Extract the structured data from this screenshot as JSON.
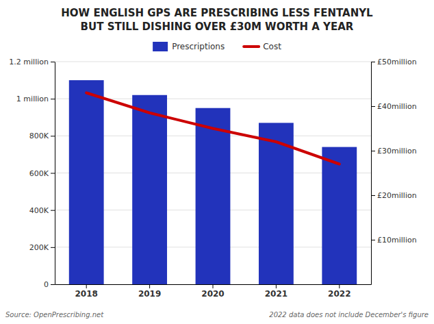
{
  "chart_data": {
    "type": "bar",
    "title": "HOW ENGLISH GPS ARE PRESCRIBING LESS FENTANYL",
    "subtitle": "BUT STILL DISHING OVER £30M WORTH A YEAR",
    "categories": [
      "2018",
      "2019",
      "2020",
      "2021",
      "2022"
    ],
    "series": [
      {
        "name": "Prescriptions",
        "type": "bar",
        "color": "#2233bb",
        "values": [
          1100000,
          1020000,
          950000,
          870000,
          740000
        ]
      },
      {
        "name": "Cost",
        "type": "line",
        "color": "#cc0000",
        "axis": "y2",
        "values": [
          43,
          38.5,
          35,
          32,
          27
        ]
      }
    ],
    "ylim": [
      0,
      1200000
    ],
    "yticks": [
      0,
      {
        "value": 200000,
        "label": "200K"
      },
      {
        "value": 400000,
        "label": "400K"
      },
      {
        "value": 600000,
        "label": "600K"
      },
      {
        "value": 800000,
        "label": "800K"
      },
      {
        "value": 1000000,
        "label": "1 million"
      },
      {
        "value": 1200000,
        "label": "1.2 million"
      }
    ],
    "y2lim": [
      0,
      50
    ],
    "y2ticks": [
      {
        "value": 10,
        "label": "£10million"
      },
      {
        "value": 20,
        "label": "£20million"
      },
      {
        "value": 30,
        "label": "£30million"
      },
      {
        "value": 40,
        "label": "£40million"
      },
      {
        "value": 50,
        "label": "£50million"
      }
    ],
    "grid": true,
    "legend": "top",
    "annotations": [
      "Source: OpenPrescribing.net",
      "2022 data does not include December's figure"
    ]
  }
}
